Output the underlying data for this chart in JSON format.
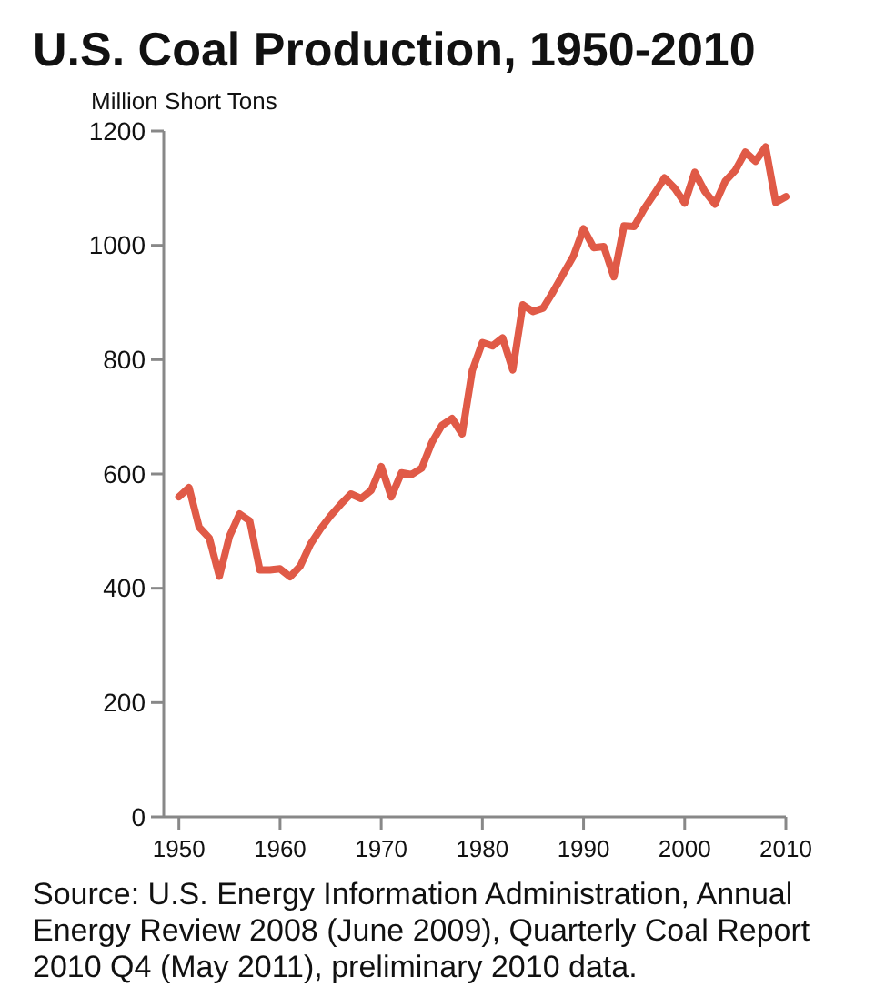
{
  "chart_data": {
    "type": "line",
    "title": "U.S. Coal Production, 1950-2010",
    "ylabel": "Million Short Tons",
    "x": [
      1950,
      1951,
      1952,
      1953,
      1954,
      1955,
      1956,
      1957,
      1958,
      1959,
      1960,
      1961,
      1962,
      1963,
      1964,
      1965,
      1966,
      1967,
      1968,
      1969,
      1970,
      1971,
      1972,
      1973,
      1974,
      1975,
      1976,
      1977,
      1978,
      1979,
      1980,
      1981,
      1982,
      1983,
      1984,
      1985,
      1986,
      1987,
      1988,
      1989,
      1990,
      1991,
      1992,
      1993,
      1994,
      1995,
      1996,
      1997,
      1998,
      1999,
      2000,
      2001,
      2002,
      2003,
      2004,
      2005,
      2006,
      2007,
      2008,
      2009,
      2010
    ],
    "series": [
      {
        "color": "#e05a47",
        "values": [
          560,
          576,
          507,
          488,
          421,
          491,
          530,
          518,
          432,
          432,
          434,
          420,
          439,
          477,
          504,
          527,
          547,
          565,
          557,
          571,
          613,
          560,
          602,
          599,
          610,
          655,
          685,
          697,
          670,
          781,
          830,
          824,
          838,
          782,
          896,
          884,
          890,
          919,
          950,
          981,
          1029,
          996,
          998,
          945,
          1034,
          1033,
          1064,
          1090,
          1118,
          1100,
          1074,
          1128,
          1094,
          1072,
          1112,
          1131,
          1163,
          1147,
          1172,
          1075,
          1085
        ]
      }
    ],
    "xlim": [
      1948.5,
      2010
    ],
    "xticks": [
      1950,
      1960,
      1970,
      1980,
      1990,
      2000,
      2010
    ],
    "ylim": [
      0,
      1200
    ],
    "yticks": [
      0,
      200,
      400,
      600,
      800,
      1000,
      1200
    ],
    "grid": false,
    "marker": "none",
    "line_style": "solid",
    "annotations": [
      "Source: U.S. Energy Information Administration, Annual Energy Review 2008 (June 2009), Quarterly Coal Report 2010 Q4 (May 2011), preliminary 2010 data."
    ]
  }
}
